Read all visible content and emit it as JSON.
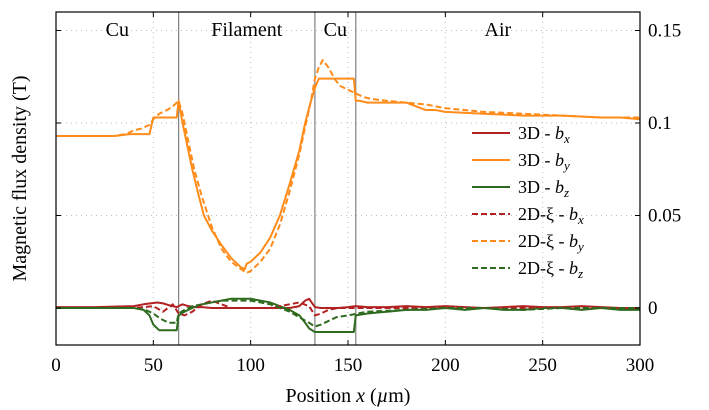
{
  "chart_data": {
    "type": "line",
    "xlabel": "Position x (µm)",
    "xlabel_parts": [
      "Position ",
      "x",
      " (",
      "µ",
      "m)"
    ],
    "ylabel": "Magnetic flux density (T)",
    "xlim": [
      0,
      300
    ],
    "ylim": [
      -0.02,
      0.16
    ],
    "x_ticks": [
      0,
      50,
      100,
      150,
      200,
      250,
      300
    ],
    "x_tick_labels": [
      "0",
      "50",
      "100",
      "150",
      "200",
      "250",
      "300"
    ],
    "y_ticks": [
      0,
      0.05,
      0.1,
      0.15
    ],
    "y_tick_labels": [
      "0",
      "0.05",
      "0.1",
      "0.15"
    ],
    "y_axis_side": "right",
    "grid": true,
    "legend_placement": "right",
    "region_boundaries": [
      63,
      133,
      154
    ],
    "regions": [
      {
        "label": "Cu",
        "x": 31.5
      },
      {
        "label": "Filament",
        "x": 98
      },
      {
        "label": "Cu",
        "x": 143.5
      },
      {
        "label": "Air",
        "x": 227
      }
    ],
    "series": [
      {
        "name": "3D - b_x",
        "legend_text": "3D - ",
        "legend_sub": "x",
        "legend_var": "b",
        "color": "#b22222",
        "dash": "solid",
        "x": [
          0,
          20,
          40,
          45,
          52,
          55,
          58,
          62,
          63,
          65,
          68,
          72,
          75,
          80,
          85,
          90,
          95,
          100,
          105,
          110,
          115,
          120,
          125,
          128,
          130,
          132,
          133,
          136,
          140,
          145,
          150,
          154,
          160,
          170,
          180,
          190,
          200,
          210,
          220,
          230,
          240,
          250,
          260,
          270,
          280,
          290,
          300
        ],
        "y": [
          0.0005,
          0.0005,
          0.001,
          0.002,
          0.003,
          0.0025,
          0.0015,
          0.0005,
          0.001,
          0.002,
          0.001,
          0.0005,
          0.0005,
          0.0,
          0.0,
          0.0,
          0.0,
          0.0,
          0.0,
          0.0,
          0.0,
          0.0,
          0.001,
          0.004,
          0.005,
          0.002,
          0.0005,
          0.0,
          0.0,
          0.0,
          0.0005,
          0.001,
          0.0005,
          0.0005,
          0.001,
          0.0005,
          0.001,
          0.0005,
          0.0,
          0.0005,
          0.001,
          0.0005,
          0.0005,
          0.001,
          0.0005,
          0.0,
          0.0
        ]
      },
      {
        "name": "3D - b_y",
        "legend_text": "3D - ",
        "legend_sub": "y",
        "legend_var": "b",
        "color": "#ff8c1a",
        "dash": "solid",
        "x": [
          0,
          10,
          20,
          30,
          38,
          40,
          48,
          50,
          52,
          55,
          58,
          62,
          63,
          65,
          67,
          70,
          73,
          76,
          80,
          85,
          90,
          95,
          97,
          98,
          100,
          105,
          110,
          115,
          120,
          125,
          128,
          131,
          133,
          135,
          140,
          145,
          150,
          153,
          154,
          156,
          160,
          170,
          180,
          190,
          195,
          200,
          220,
          240,
          260,
          280,
          290,
          300
        ],
        "y": [
          0.093,
          0.093,
          0.093,
          0.093,
          0.094,
          0.094,
          0.094,
          0.103,
          0.103,
          0.103,
          0.103,
          0.103,
          0.112,
          0.1,
          0.09,
          0.075,
          0.062,
          0.05,
          0.042,
          0.034,
          0.027,
          0.022,
          0.021,
          0.024,
          0.025,
          0.03,
          0.038,
          0.05,
          0.067,
          0.085,
          0.1,
          0.112,
          0.119,
          0.124,
          0.124,
          0.124,
          0.124,
          0.124,
          0.112,
          0.112,
          0.111,
          0.111,
          0.111,
          0.107,
          0.107,
          0.106,
          0.105,
          0.104,
          0.104,
          0.103,
          0.103,
          0.102
        ]
      },
      {
        "name": "3D - b_z",
        "legend_text": "3D - ",
        "legend_sub": "z",
        "legend_var": "b",
        "color": "#2e6b1f",
        "dash": "solid",
        "x": [
          0,
          20,
          40,
          45,
          48,
          50,
          53,
          57,
          62,
          63,
          66,
          70,
          75,
          80,
          85,
          90,
          95,
          100,
          105,
          110,
          115,
          120,
          125,
          128,
          130,
          133,
          137,
          140,
          145,
          150,
          153,
          154,
          160,
          170,
          180,
          190,
          200,
          210,
          220,
          230,
          240,
          250,
          260,
          270,
          280,
          290,
          300
        ],
        "y": [
          0.0,
          0.0,
          0.0,
          -0.001,
          -0.004,
          -0.009,
          -0.012,
          -0.012,
          -0.012,
          -0.004,
          -0.002,
          0.0,
          0.002,
          0.003,
          0.004,
          0.005,
          0.005,
          0.005,
          0.004,
          0.003,
          0.001,
          -0.001,
          -0.004,
          -0.008,
          -0.011,
          -0.013,
          -0.013,
          -0.013,
          -0.013,
          -0.013,
          -0.013,
          -0.004,
          -0.003,
          -0.002,
          -0.001,
          -0.001,
          0.0,
          -0.001,
          0.0,
          -0.001,
          -0.001,
          0.0,
          0.0,
          -0.001,
          0.0,
          -0.001,
          -0.001
        ]
      },
      {
        "name": "2D-ξ - b_x",
        "legend_text": "2D-ξ - ",
        "legend_sub": "x",
        "legend_var": "b",
        "color": "#b22222",
        "dash": "dashed",
        "x": [
          0,
          20,
          40,
          50,
          55,
          60,
          63,
          66,
          70,
          75,
          80,
          85,
          90,
          95,
          100,
          105,
          110,
          115,
          120,
          125,
          130,
          133,
          136,
          140,
          145,
          150,
          155,
          160,
          180,
          200,
          220,
          240,
          260,
          280,
          300
        ],
        "y": [
          0.0,
          0.0,
          0.0,
          0.001,
          -0.002,
          0.002,
          -0.003,
          -0.004,
          -0.002,
          0.002,
          0.004,
          0.002,
          0.0,
          0.0,
          0.0,
          0.0,
          0.0,
          0.001,
          0.002,
          0.003,
          0.001,
          -0.004,
          -0.003,
          -0.001,
          0.0,
          0.0,
          0.0,
          0.0,
          0.0,
          0.0,
          0.0,
          0.0,
          0.0,
          0.0,
          0.0
        ]
      },
      {
        "name": "2D-ξ - b_y",
        "legend_text": "2D-ξ - ",
        "legend_sub": "y",
        "legend_var": "b",
        "color": "#ff8c1a",
        "dash": "dashed",
        "x": [
          0,
          10,
          20,
          30,
          36,
          40,
          44,
          48,
          50,
          53,
          57,
          60,
          63,
          65,
          68,
          71,
          75,
          80,
          85,
          90,
          95,
          98,
          100,
          105,
          110,
          115,
          120,
          125,
          128,
          131,
          133,
          135,
          137,
          140,
          143,
          146,
          150,
          154,
          158,
          162,
          170,
          180,
          190,
          200,
          210,
          220,
          240,
          260,
          280,
          290,
          300
        ],
        "y": [
          0.093,
          0.093,
          0.093,
          0.093,
          0.094,
          0.096,
          0.097,
          0.099,
          0.102,
          0.105,
          0.107,
          0.109,
          0.112,
          0.105,
          0.09,
          0.075,
          0.06,
          0.044,
          0.032,
          0.025,
          0.021,
          0.019,
          0.02,
          0.025,
          0.032,
          0.045,
          0.063,
          0.083,
          0.098,
          0.112,
          0.124,
          0.13,
          0.134,
          0.13,
          0.124,
          0.12,
          0.118,
          0.116,
          0.114,
          0.113,
          0.112,
          0.111,
          0.11,
          0.108,
          0.107,
          0.106,
          0.105,
          0.104,
          0.103,
          0.103,
          0.103
        ]
      },
      {
        "name": "2D-ξ - b_z",
        "legend_text": "2D-ξ - ",
        "legend_sub": "z",
        "legend_var": "b",
        "color": "#2e6b1f",
        "dash": "dashed",
        "x": [
          0,
          20,
          40,
          46,
          50,
          54,
          58,
          62,
          63,
          66,
          70,
          75,
          80,
          85,
          90,
          95,
          100,
          105,
          110,
          115,
          120,
          125,
          130,
          133,
          136,
          140,
          144,
          150,
          155,
          160,
          180,
          200,
          220,
          240,
          260,
          280,
          300
        ],
        "y": [
          0.0,
          0.0,
          0.0,
          -0.001,
          -0.003,
          -0.006,
          -0.008,
          -0.008,
          -0.003,
          -0.001,
          0.001,
          0.002,
          0.003,
          0.004,
          0.004,
          0.004,
          0.004,
          0.003,
          0.002,
          0.0,
          -0.002,
          -0.005,
          -0.008,
          -0.01,
          -0.009,
          -0.007,
          -0.005,
          -0.004,
          -0.003,
          -0.002,
          -0.001,
          0.0,
          0.0,
          -0.001,
          0.0,
          0.0,
          0.0
        ]
      }
    ]
  }
}
